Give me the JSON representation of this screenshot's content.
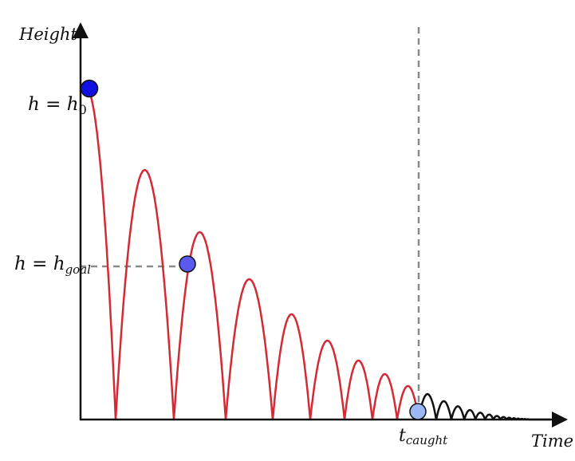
{
  "axes": {
    "y_label": "Height",
    "x_label": "Time"
  },
  "annotations": {
    "h0": {
      "lhs": "h",
      "eq": " = ",
      "var": "h",
      "sub": "0"
    },
    "hgoal": {
      "lhs": "h",
      "eq": " = ",
      "var": "h",
      "sub": "goal"
    },
    "tcaught": {
      "var": "t",
      "sub": "caught"
    }
  },
  "colors": {
    "trajectory_before": "#d42a35",
    "trajectory_after": "#111111",
    "axis": "#111111",
    "guide": "#8a8a8a",
    "ball_start": "#1010e0",
    "ball_goal": "#5a5af0",
    "ball_caught": "#9bb8f5"
  }
}
